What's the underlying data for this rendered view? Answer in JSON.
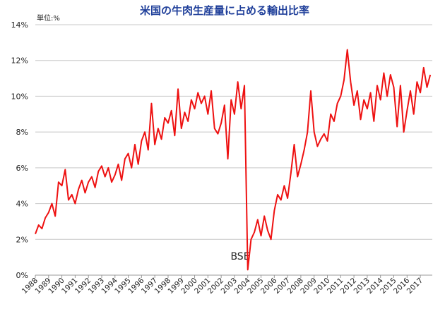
{
  "chart_data": {
    "type": "line",
    "title": "米国の牛肉生産量に占める輸出比率",
    "unit_label": "単位:%",
    "annotation": "BSE",
    "xlim": [
      1988,
      2017.9
    ],
    "xticks": [
      1988,
      1989,
      1990,
      1991,
      1992,
      1993,
      1994,
      1995,
      1996,
      1997,
      1998,
      1999,
      2000,
      2001,
      2002,
      2003,
      2004,
      2005,
      2006,
      2007,
      2008,
      2009,
      2010,
      2011,
      2012,
      2013,
      2014,
      2015,
      2016,
      2017
    ],
    "ylim": [
      0,
      14
    ],
    "yticks": [
      {
        "value": 0,
        "label": "0%"
      },
      {
        "value": 2,
        "label": "2%"
      },
      {
        "value": 4,
        "label": "4%"
      },
      {
        "value": 6,
        "label": "6%"
      },
      {
        "value": 8,
        "label": "8%"
      },
      {
        "value": 10,
        "label": "10%"
      },
      {
        "value": 12,
        "label": "12%"
      },
      {
        "value": 14,
        "label": "14%"
      }
    ],
    "grid": true,
    "series": [
      {
        "color": "#ee1111",
        "x": [
          1988,
          1988.25,
          1988.5,
          1988.75,
          1989,
          1989.25,
          1989.5,
          1989.75,
          1990,
          1990.25,
          1990.5,
          1990.75,
          1991,
          1991.25,
          1991.5,
          1991.75,
          1992,
          1992.25,
          1992.5,
          1992.75,
          1993,
          1993.25,
          1993.5,
          1993.75,
          1994,
          1994.25,
          1994.5,
          1994.75,
          1995,
          1995.25,
          1995.5,
          1995.75,
          1996,
          1996.25,
          1996.5,
          1996.75,
          1997,
          1997.25,
          1997.5,
          1997.75,
          1998,
          1998.25,
          1998.5,
          1998.75,
          1999,
          1999.25,
          1999.5,
          1999.75,
          2000,
          2000.25,
          2000.5,
          2000.75,
          2001,
          2001.25,
          2001.5,
          2001.75,
          2002,
          2002.25,
          2002.5,
          2002.75,
          2003,
          2003.25,
          2003.5,
          2003.75,
          2004,
          2004.25,
          2004.5,
          2004.75,
          2005,
          2005.25,
          2005.5,
          2005.75,
          2006,
          2006.25,
          2006.5,
          2006.75,
          2007,
          2007.25,
          2007.5,
          2007.75,
          2008,
          2008.25,
          2008.5,
          2008.75,
          2009,
          2009.25,
          2009.5,
          2009.75,
          2010,
          2010.25,
          2010.5,
          2010.75,
          2011,
          2011.25,
          2011.5,
          2011.75,
          2012,
          2012.25,
          2012.5,
          2012.75,
          2013,
          2013.25,
          2013.5,
          2013.75,
          2014,
          2014.25,
          2014.5,
          2014.75,
          2015,
          2015.25,
          2015.5,
          2015.75,
          2016,
          2016.25,
          2016.5,
          2016.75,
          2017,
          2017.25,
          2017.5,
          2017.75
        ],
        "values": [
          2.3,
          2.8,
          2.6,
          3.2,
          3.5,
          4.0,
          3.3,
          5.2,
          5.0,
          5.9,
          4.2,
          4.5,
          4.0,
          4.8,
          5.3,
          4.6,
          5.2,
          5.5,
          4.9,
          5.8,
          6.1,
          5.5,
          6.0,
          5.2,
          5.6,
          6.2,
          5.3,
          6.5,
          6.8,
          6.0,
          7.3,
          6.2,
          7.5,
          8.0,
          7.0,
          9.6,
          7.3,
          8.2,
          7.6,
          8.8,
          8.5,
          9.2,
          7.8,
          10.4,
          8.2,
          9.1,
          8.6,
          9.8,
          9.3,
          10.2,
          9.6,
          10.0,
          9.0,
          10.3,
          8.2,
          7.9,
          8.5,
          9.5,
          6.5,
          9.8,
          9.0,
          10.8,
          9.3,
          10.6,
          0.3,
          2.0,
          2.4,
          3.1,
          2.2,
          3.3,
          2.5,
          2.0,
          3.6,
          4.5,
          4.2,
          5.0,
          4.3,
          5.7,
          7.3,
          5.5,
          6.2,
          7.0,
          8.0,
          10.3,
          8.0,
          7.2,
          7.6,
          7.9,
          7.5,
          9.0,
          8.6,
          9.6,
          10.0,
          10.9,
          12.6,
          10.8,
          9.5,
          10.3,
          8.7,
          9.8,
          9.3,
          10.2,
          8.6,
          10.6,
          9.8,
          11.3,
          10.0,
          11.2,
          10.5,
          8.3,
          10.6,
          8.0,
          9.2,
          10.3,
          9.0,
          10.8,
          10.2,
          11.6,
          10.5,
          11.2
        ]
      }
    ]
  }
}
